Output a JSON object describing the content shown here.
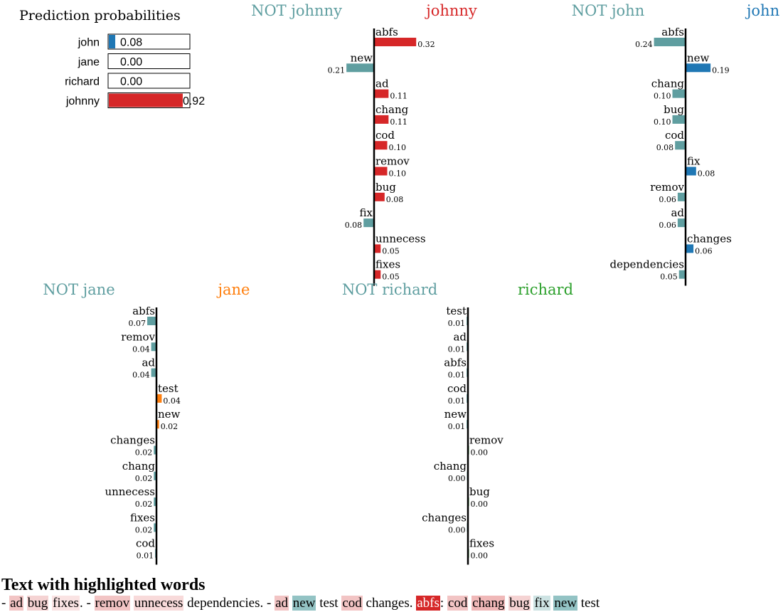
{
  "colors": {
    "not_color": "#5f9ea0",
    "johnny": "#d62728",
    "john": "#1f77b4",
    "jane": "#ff7f0e",
    "richard": "#2ca02c"
  },
  "chart_data": [
    {
      "type": "bar",
      "orientation": "horizontal",
      "title": "Prediction probabilities",
      "categories": [
        "john",
        "jane",
        "richard",
        "johnny"
      ],
      "values": [
        0.08,
        0.0,
        0.0,
        0.92
      ],
      "value_labels": [
        "0.08",
        "0.00",
        "0.00",
        "0.92"
      ],
      "class_colors": [
        "#1f77b4",
        "#ff7f0e",
        "#2ca02c",
        "#d62728"
      ],
      "xlim": [
        0,
        1
      ]
    },
    {
      "type": "bar",
      "orientation": "horizontal",
      "label_negative": "NOT johnny",
      "label_positive": "johnny",
      "positive_color": "#d62728",
      "negative_color": "#5f9ea0",
      "features": [
        "abfs",
        "new",
        "ad",
        "chang",
        "cod",
        "remov",
        "bug",
        "fix",
        "unnecess",
        "fixes"
      ],
      "values": [
        0.32,
        -0.21,
        0.11,
        0.11,
        0.1,
        0.1,
        0.08,
        -0.08,
        0.05,
        0.05
      ],
      "value_labels": [
        "0.32",
        "0.21",
        "0.11",
        "0.11",
        "0.10",
        "0.10",
        "0.08",
        "0.08",
        "0.05",
        "0.05"
      ]
    },
    {
      "type": "bar",
      "orientation": "horizontal",
      "label_negative": "NOT john",
      "label_positive": "john",
      "positive_color": "#1f77b4",
      "negative_color": "#5f9ea0",
      "features": [
        "abfs",
        "new",
        "chang",
        "bug",
        "cod",
        "fix",
        "remov",
        "ad",
        "changes",
        "dependencies"
      ],
      "values": [
        -0.24,
        0.19,
        -0.1,
        -0.1,
        -0.08,
        0.08,
        -0.06,
        -0.06,
        0.06,
        -0.05
      ],
      "value_labels": [
        "0.24",
        "0.19",
        "0.10",
        "0.10",
        "0.08",
        "0.08",
        "0.06",
        "0.06",
        "0.06",
        "0.05"
      ]
    },
    {
      "type": "bar",
      "orientation": "horizontal",
      "label_negative": "NOT jane",
      "label_positive": "jane",
      "positive_color": "#ff7f0e",
      "negative_color": "#5f9ea0",
      "features": [
        "abfs",
        "remov",
        "ad",
        "test",
        "new",
        "changes",
        "chang",
        "unnecess",
        "fixes",
        "cod"
      ],
      "values": [
        -0.07,
        -0.04,
        -0.04,
        0.04,
        0.02,
        -0.02,
        -0.02,
        -0.02,
        -0.02,
        -0.01
      ],
      "value_labels": [
        "0.07",
        "0.04",
        "0.04",
        "0.04",
        "0.02",
        "0.02",
        "0.02",
        "0.02",
        "0.02",
        "0.01"
      ]
    },
    {
      "type": "bar",
      "orientation": "horizontal",
      "label_negative": "NOT richard",
      "label_positive": "richard",
      "positive_color": "#2ca02c",
      "negative_color": "#5f9ea0",
      "features": [
        "test",
        "ad",
        "abfs",
        "cod",
        "new",
        "remov",
        "chang",
        "bug",
        "changes",
        "fixes"
      ],
      "values": [
        -0.01,
        -0.01,
        -0.01,
        -0.01,
        -0.01,
        0.001,
        -0.001,
        0.001,
        -0.001,
        0.001
      ],
      "value_labels": [
        "0.01",
        "0.01",
        "0.01",
        "0.01",
        "0.01",
        "0.00",
        "0.00",
        "0.00",
        "0.00",
        "0.00"
      ]
    }
  ],
  "highlighted_text": {
    "title": "Text with highlighted words",
    "tokens": [
      {
        "t": "- "
      },
      {
        "t": "ad",
        "bg": "#f2c4c4"
      },
      {
        "t": " "
      },
      {
        "t": "bug",
        "bg": "#f5d3d3"
      },
      {
        "t": " "
      },
      {
        "t": "fixes",
        "bg": "#fae3e3"
      },
      {
        "t": ". - "
      },
      {
        "t": "remov",
        "bg": "#f2c4c4"
      },
      {
        "t": " "
      },
      {
        "t": "unnecess",
        "bg": "#f8dada"
      },
      {
        "t": " dependencies. - "
      },
      {
        "t": "ad",
        "bg": "#f2c4c4"
      },
      {
        "t": " "
      },
      {
        "t": "new",
        "bg": "#93c3c4"
      },
      {
        "t": " test "
      },
      {
        "t": "cod",
        "bg": "#f2c4c4"
      },
      {
        "t": " changes. "
      },
      {
        "t": "abfs",
        "bg": "#d62728",
        "fg": "#ffffff"
      },
      {
        "t": ": "
      },
      {
        "t": "cod",
        "bg": "#f2c4c4"
      },
      {
        "t": " "
      },
      {
        "t": "chang",
        "bg": "#f0b8b8"
      },
      {
        "t": " "
      },
      {
        "t": "bug",
        "bg": "#f5d3d3"
      },
      {
        "t": " "
      },
      {
        "t": "fix",
        "bg": "#cde3e3"
      },
      {
        "t": " "
      },
      {
        "t": "new",
        "bg": "#93c3c4"
      },
      {
        "t": " test"
      }
    ]
  }
}
